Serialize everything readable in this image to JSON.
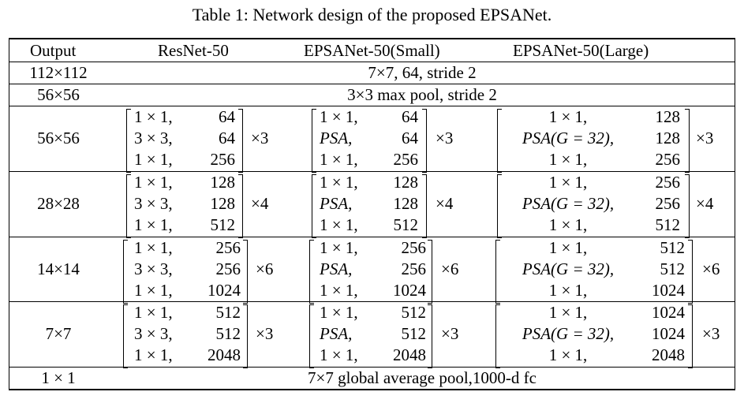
{
  "caption": "Table 1: Network design of the proposed EPSANet.",
  "headers": [
    "Output",
    "ResNet-50",
    "EPSANet-50(Small)",
    "EPSANet-50(Large)"
  ],
  "span_rows": [
    {
      "output": "112×112",
      "text": "7×7, 64, stride 2"
    },
    {
      "output": "56×56",
      "text": "3×3 max pool, stride 2"
    }
  ],
  "stages": [
    {
      "output": "56×56",
      "repeat": "×3",
      "resnet": [
        [
          "1 × 1,",
          "64"
        ],
        [
          "3 × 3,",
          "64"
        ],
        [
          "1 × 1,",
          "256"
        ]
      ],
      "small": [
        [
          "1 × 1,",
          "64"
        ],
        [
          "PSA,",
          "64"
        ],
        [
          "1 × 1,",
          "256"
        ]
      ],
      "large": [
        [
          "1 × 1,",
          "128"
        ],
        [
          "PSA(G = 32),",
          "128"
        ],
        [
          "1 × 1,",
          "256"
        ]
      ]
    },
    {
      "output": "28×28",
      "repeat": "×4",
      "resnet": [
        [
          "1 × 1,",
          "128"
        ],
        [
          "3 × 3,",
          "128"
        ],
        [
          "1 × 1,",
          "512"
        ]
      ],
      "small": [
        [
          "1 × 1,",
          "128"
        ],
        [
          "PSA,",
          "128"
        ],
        [
          "1 × 1,",
          "512"
        ]
      ],
      "large": [
        [
          "1 × 1,",
          "256"
        ],
        [
          "PSA(G = 32),",
          "256"
        ],
        [
          "1 × 1,",
          "512"
        ]
      ]
    },
    {
      "output": "14×14",
      "repeat": "×6",
      "resnet": [
        [
          "1 × 1,",
          "256"
        ],
        [
          "3 × 3,",
          "256"
        ],
        [
          "1 × 1,",
          "1024"
        ]
      ],
      "small": [
        [
          "1 × 1,",
          "256"
        ],
        [
          "PSA,",
          "256"
        ],
        [
          "1 × 1,",
          "1024"
        ]
      ],
      "large": [
        [
          "1 × 1,",
          "512"
        ],
        [
          "PSA(G = 32),",
          "512"
        ],
        [
          "1 × 1,",
          "1024"
        ]
      ]
    },
    {
      "output": "7×7",
      "repeat": "×3",
      "resnet": [
        [
          "1 × 1,",
          "512"
        ],
        [
          "3 × 3,",
          "512"
        ],
        [
          "1 × 1,",
          "2048"
        ]
      ],
      "small": [
        [
          "1 × 1,",
          "512"
        ],
        [
          "PSA,",
          "512"
        ],
        [
          "1 × 1,",
          "2048"
        ]
      ],
      "large": [
        [
          "1 × 1,",
          "1024"
        ],
        [
          "PSA(G = 32),",
          "1024"
        ],
        [
          "1 × 1,",
          "2048"
        ]
      ]
    }
  ],
  "final_row": {
    "output": "1 × 1",
    "text": "7×7 global average pool,1000-d fc"
  }
}
